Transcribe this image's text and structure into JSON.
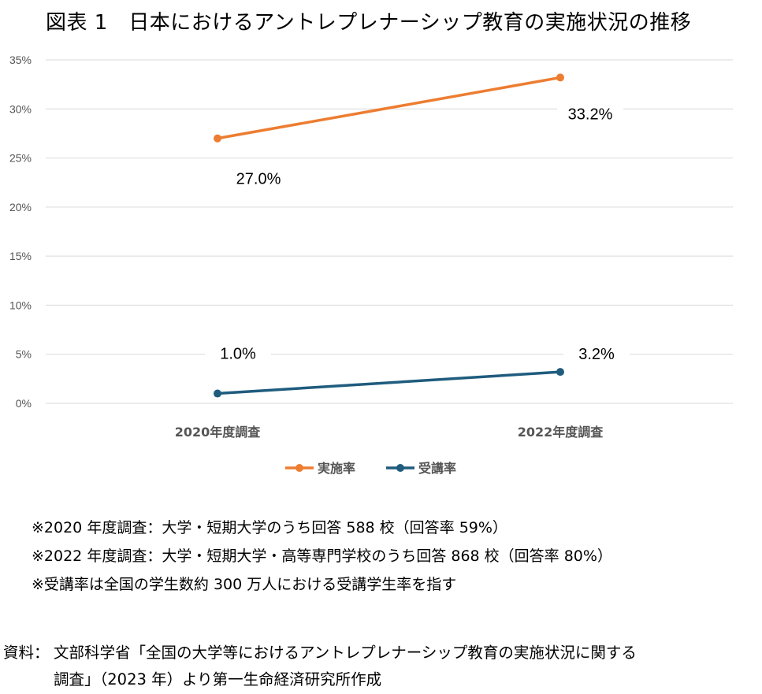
{
  "title": "図表 1　日本におけるアントレプレナーシップ教育の実施状況の推移",
  "chart_data": {
    "type": "line",
    "categories": [
      "2020年度調査",
      "2022年度調査"
    ],
    "series": [
      {
        "name": "実施率",
        "values": [
          27.0,
          33.2
        ],
        "labels": [
          "27.0%",
          "33.2%"
        ],
        "color": "#ED7D31"
      },
      {
        "name": "受講率",
        "values": [
          1.0,
          3.2
        ],
        "labels": [
          "1.0%",
          "3.2%"
        ],
        "color": "#1F5C7E"
      }
    ],
    "yticks": [
      "0%",
      "5%",
      "10%",
      "15%",
      "20%",
      "25%",
      "30%",
      "35%"
    ],
    "ylim": [
      0,
      35
    ],
    "legend_position": "bottom",
    "gridlines": true
  },
  "notes": [
    "※2020 年度調査：大学・短期大学のうち回答 588 校（回答率 59%）",
    "※2022 年度調査：大学・短期大学・高等専門学校のうち回答 868 校（回答率 80%）",
    "※受講率は全国の学生数約 300 万人における受講学生率を指す"
  ],
  "source": {
    "label": "資料：",
    "line1": "文部科学省「全国の大学等におけるアントレプレナーシップ教育の実施状況に関する",
    "line2": "調査」（2023 年）より第一生命経済研究所作成"
  }
}
